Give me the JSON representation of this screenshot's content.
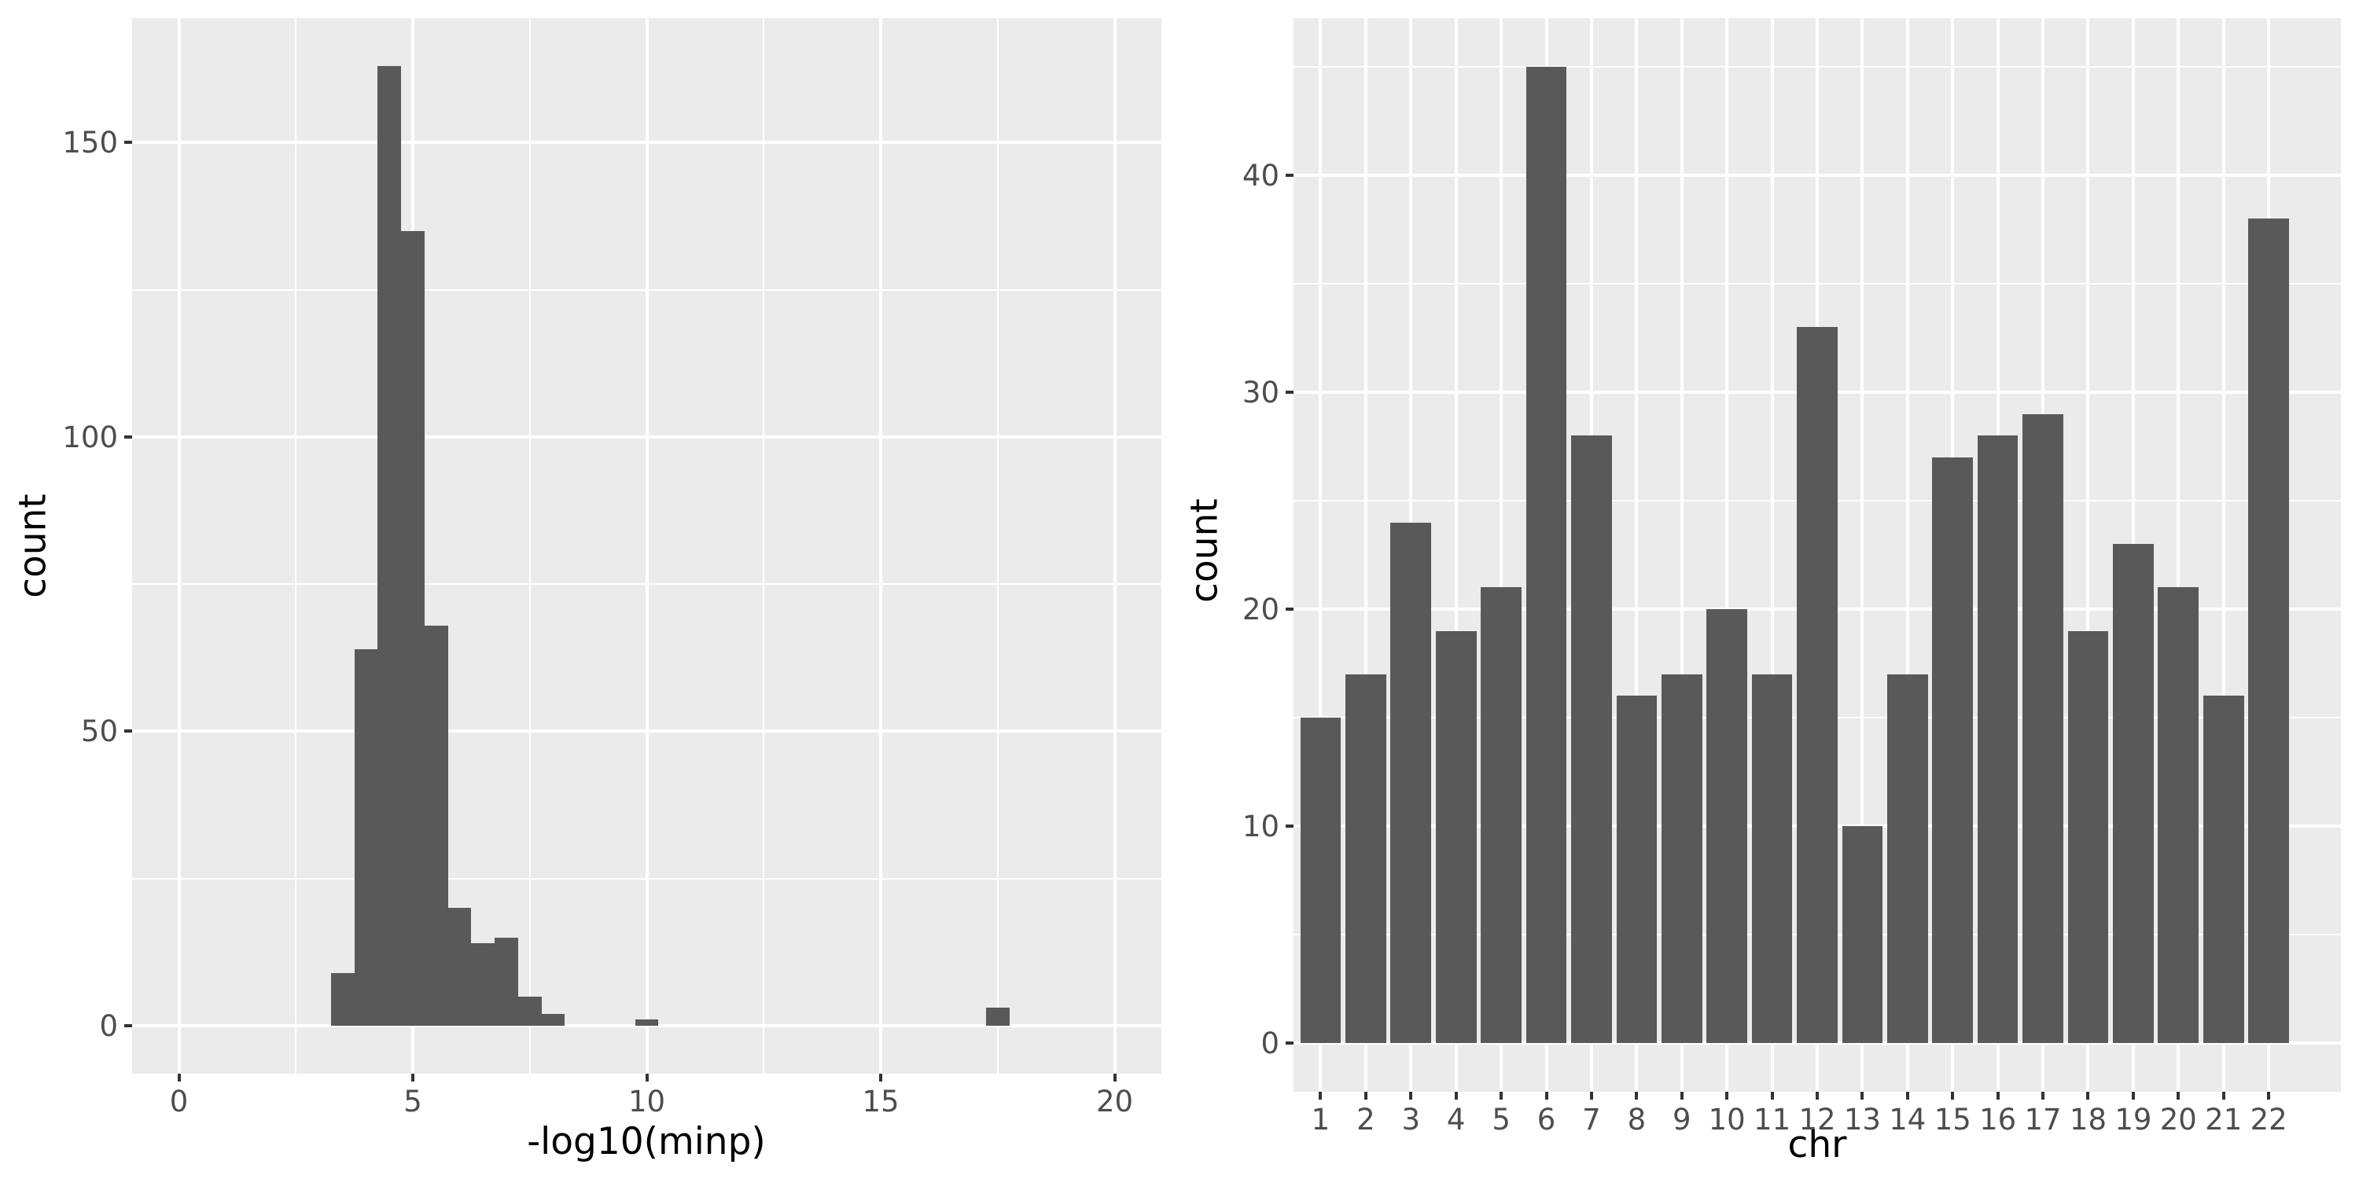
{
  "figure": {
    "background": "#FFFFFF",
    "panel_background": "#EBEBEB",
    "grid_color": "#FFFFFF",
    "bar_fill": "#595959",
    "axis_text_color": "#4D4D4D",
    "axis_title_color": "#000000",
    "tick_color": "#333333"
  },
  "chart_data": [
    {
      "id": "minp-histogram",
      "type": "bar",
      "subtype": "histogram",
      "title": "",
      "xlabel": "-log10(minp)",
      "ylabel": "count",
      "xlim": [
        -1,
        21
      ],
      "ylim": [
        -8.15,
        171.15
      ],
      "x_ticks": [
        0,
        5,
        10,
        15,
        20
      ],
      "x_minor_ticks": [
        2.5,
        7.5,
        12.5,
        17.5
      ],
      "y_ticks": [
        0,
        50,
        100,
        150
      ],
      "y_minor_ticks": [
        25,
        75,
        125
      ],
      "grid": true,
      "legend": false,
      "bins": {
        "start": 3.25,
        "width": 0.5,
        "counts": [
          9,
          64,
          163,
          135,
          68,
          20,
          14,
          15,
          5,
          2,
          0,
          0,
          0,
          1,
          0,
          0,
          0,
          0,
          0,
          0,
          0,
          0,
          0,
          0,
          0,
          0,
          0,
          0,
          3
        ]
      }
    },
    {
      "id": "chr-barchart",
      "type": "bar",
      "subtype": "categorical",
      "title": "",
      "xlabel": "chr",
      "ylabel": "count",
      "categories": [
        "1",
        "2",
        "3",
        "4",
        "5",
        "6",
        "7",
        "8",
        "9",
        "10",
        "11",
        "12",
        "13",
        "14",
        "15",
        "16",
        "17",
        "18",
        "19",
        "20",
        "21",
        "22"
      ],
      "values": [
        15,
        17,
        24,
        19,
        21,
        45,
        28,
        16,
        17,
        20,
        17,
        33,
        10,
        17,
        27,
        28,
        29,
        19,
        23,
        21,
        16,
        38
      ],
      "ylim": [
        -2.25,
        47.25
      ],
      "y_ticks": [
        0,
        10,
        20,
        30,
        40
      ],
      "y_minor_ticks": [
        5,
        15,
        25,
        35,
        45
      ],
      "grid": true,
      "legend": false
    }
  ]
}
